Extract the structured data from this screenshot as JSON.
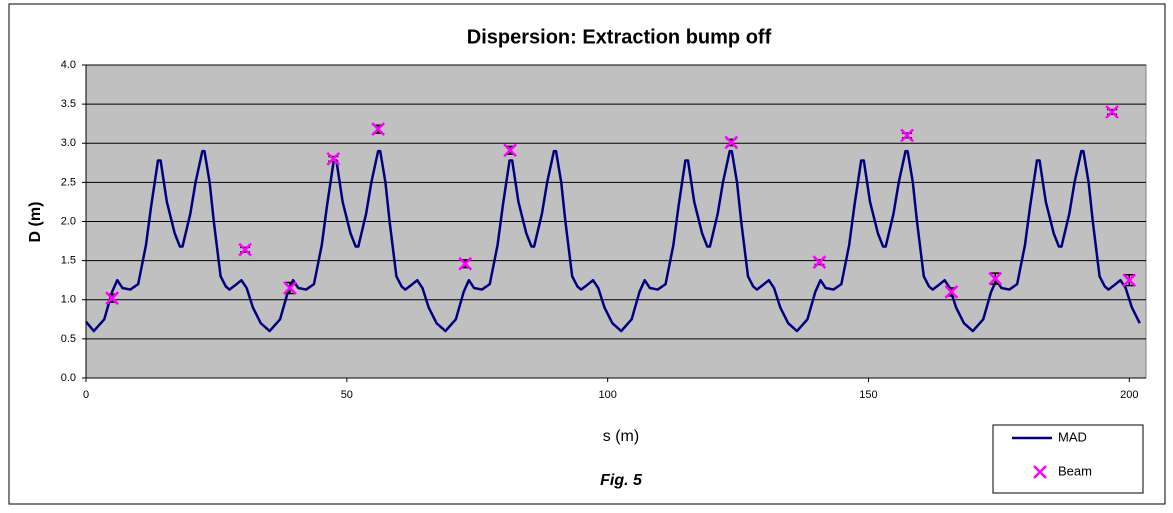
{
  "chart_data": {
    "type": "line",
    "title": "Dispersion:  Extraction bump off",
    "xlabel": "s (m)",
    "ylabel": "D (m)",
    "annotation": "Fig. 5",
    "xlim": [
      0,
      203.2
    ],
    "ylim": [
      0,
      4
    ],
    "xticks": [
      0,
      50,
      100,
      150,
      200
    ],
    "yticks": [
      {
        "value": 0,
        "label": "0.0"
      },
      {
        "value": 0.5,
        "label": "0.5"
      },
      {
        "value": 1,
        "label": "1.0"
      },
      {
        "value": 1.5,
        "label": "1.5"
      },
      {
        "value": 2,
        "label": "2.0"
      },
      {
        "value": 2.5,
        "label": "2.5"
      },
      {
        "value": 3,
        "label": "3.0"
      },
      {
        "value": 3.5,
        "label": "3.5"
      },
      {
        "value": 4,
        "label": "4.0"
      }
    ],
    "grid": true,
    "background": "#c0c0c0",
    "legend": "bottom-right",
    "series": [
      {
        "name": "MAD",
        "type": "line",
        "color": "#000080",
        "x": [
          0,
          1.5,
          3.5,
          5,
          6,
          7,
          8.5,
          10,
          11.5,
          12.5,
          13.8,
          14.3,
          15.5,
          17,
          18,
          18.5,
          20,
          21,
          22.3,
          22.7,
          23.7,
          24.5,
          25.8,
          26.8,
          27.5,
          28.5,
          29.8,
          30.8,
          32,
          33.5,
          35.2,
          37.2,
          38.7,
          39.7,
          40.7,
          42.2,
          43.7,
          45.2,
          46.2,
          47.5,
          48,
          49.2,
          50.7,
          51.7,
          52.2,
          53.7,
          54.7,
          56,
          56.4,
          57.4,
          58.2,
          59.5,
          60.5,
          61.2,
          62.2,
          63.5,
          64.5,
          65.7,
          67.2,
          68.9,
          70.9,
          72.4,
          73.4,
          74.4,
          75.9,
          77.4,
          78.9,
          79.9,
          81.2,
          81.7,
          82.9,
          84.4,
          85.4,
          85.9,
          87.4,
          88.4,
          89.7,
          90.1,
          91.1,
          91.9,
          93.2,
          94.2,
          94.9,
          95.9,
          97.2,
          98.2,
          99.4,
          100.9,
          102.6,
          104.6,
          106.1,
          107.1,
          108.1,
          109.6,
          111.1,
          112.6,
          113.6,
          114.9,
          115.4,
          116.6,
          118.1,
          119.1,
          119.6,
          121.1,
          122.1,
          123.4,
          123.8,
          124.8,
          125.6,
          126.9,
          127.9,
          128.6,
          129.6,
          130.9,
          131.9,
          133.1,
          134.6,
          136.3,
          138.3,
          139.8,
          140.8,
          141.8,
          143.3,
          144.8,
          146.3,
          147.3,
          148.6,
          149.1,
          150.3,
          151.8,
          152.8,
          153.3,
          154.8,
          155.8,
          157.1,
          157.5,
          158.5,
          159.3,
          160.6,
          161.6,
          162.3,
          163.3,
          164.6,
          165.6,
          166.8,
          168.3,
          170,
          172,
          173.5,
          174.5,
          175.5,
          177,
          178.5,
          180,
          181,
          182.3,
          182.8,
          184,
          185.5,
          186.5,
          187,
          188.5,
          189.5,
          190.8,
          191.2,
          192.2,
          193,
          194.3,
          195.3,
          196,
          197,
          198.3,
          199.3,
          200.5,
          202
        ],
        "values": [
          0.72,
          0.6,
          0.75,
          1.1,
          1.25,
          1.15,
          1.13,
          1.2,
          1.7,
          2.2,
          2.78,
          2.78,
          2.25,
          1.85,
          1.68,
          1.68,
          2.1,
          2.5,
          2.9,
          2.9,
          2.5,
          2.0,
          1.3,
          1.17,
          1.13,
          1.18,
          1.25,
          1.15,
          0.9,
          0.7,
          0.6,
          0.75,
          1.1,
          1.25,
          1.15,
          1.13,
          1.2,
          1.7,
          2.2,
          2.78,
          2.78,
          2.25,
          1.85,
          1.68,
          1.68,
          2.1,
          2.5,
          2.9,
          2.9,
          2.5,
          2.0,
          1.3,
          1.17,
          1.13,
          1.18,
          1.25,
          1.15,
          0.9,
          0.7,
          0.6,
          0.75,
          1.1,
          1.25,
          1.15,
          1.13,
          1.2,
          1.7,
          2.2,
          2.78,
          2.78,
          2.25,
          1.85,
          1.68,
          1.68,
          2.1,
          2.5,
          2.9,
          2.9,
          2.5,
          2.0,
          1.3,
          1.17,
          1.13,
          1.18,
          1.25,
          1.15,
          0.9,
          0.7,
          0.6,
          0.75,
          1.1,
          1.25,
          1.15,
          1.13,
          1.2,
          1.7,
          2.2,
          2.78,
          2.78,
          2.25,
          1.85,
          1.68,
          1.68,
          2.1,
          2.5,
          2.9,
          2.9,
          2.5,
          2.0,
          1.3,
          1.17,
          1.13,
          1.18,
          1.25,
          1.15,
          0.9,
          0.7,
          0.6,
          0.75,
          1.1,
          1.25,
          1.15,
          1.13,
          1.2,
          1.7,
          2.2,
          2.78,
          2.78,
          2.25,
          1.85,
          1.68,
          1.68,
          2.1,
          2.5,
          2.9,
          2.9,
          2.5,
          2.0,
          1.3,
          1.17,
          1.13,
          1.18,
          1.25,
          1.15,
          0.9,
          0.7,
          0.6,
          0.75,
          1.1,
          1.25,
          1.15,
          1.13,
          1.2,
          1.7,
          2.2,
          2.78,
          2.78,
          2.25,
          1.85,
          1.68,
          1.68,
          2.1,
          2.5,
          2.9,
          2.9,
          2.5,
          2.0,
          1.3,
          1.17,
          1.13,
          1.18,
          1.25,
          1.15,
          0.9,
          0.7
        ]
      },
      {
        "name": "Beam",
        "type": "scatter",
        "color": "#ff00ff",
        "x": [
          5.0,
          30.5,
          39.1,
          47.4,
          56.0,
          72.7,
          81.3,
          123.7,
          140.6,
          157.4,
          165.9,
          174.3,
          196.7,
          200
        ],
        "values": [
          1.02,
          1.64,
          1.15,
          2.8,
          3.18,
          1.46,
          2.91,
          3.01,
          1.48,
          3.1,
          1.1,
          1.27,
          3.4,
          1.25
        ],
        "errors": [
          0.05,
          0.03,
          0.07,
          0.03,
          0.05,
          0.05,
          0.05,
          0.04,
          0.03,
          0.03,
          0.05,
          0.07,
          0.03,
          0.07
        ],
        "error_color": "#000000"
      }
    ]
  }
}
